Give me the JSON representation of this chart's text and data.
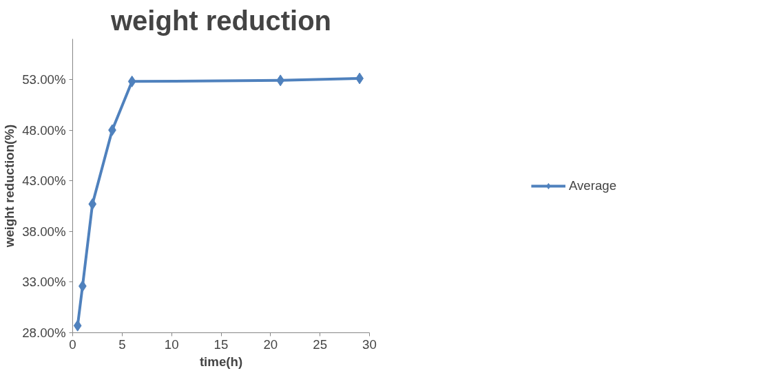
{
  "chart_data": {
    "type": "line",
    "title": "weight reduction",
    "xlabel": "time(h)",
    "ylabel": "weight reduction(%)",
    "x": [
      0.5,
      1,
      2,
      4,
      6,
      21,
      29
    ],
    "series": [
      {
        "name": "Average",
        "color": "#4f81bd",
        "values": [
          28.7,
          32.6,
          40.7,
          48.0,
          52.8,
          52.9,
          53.1
        ]
      }
    ],
    "xlim": [
      0,
      30
    ],
    "xticks": [
      0,
      5,
      10,
      15,
      20,
      25,
      30
    ],
    "ylim": [
      28,
      57
    ],
    "yticks": [
      {
        "value": 28,
        "label": "28.00%"
      },
      {
        "value": 33,
        "label": "33.00%"
      },
      {
        "value": 38,
        "label": "38.00%"
      },
      {
        "value": 43,
        "label": "43.00%"
      },
      {
        "value": 48,
        "label": "48.00%"
      },
      {
        "value": 53,
        "label": "53.00%"
      }
    ],
    "grid": false,
    "legend": "right",
    "marker": "diamond",
    "line_style": "solid"
  }
}
